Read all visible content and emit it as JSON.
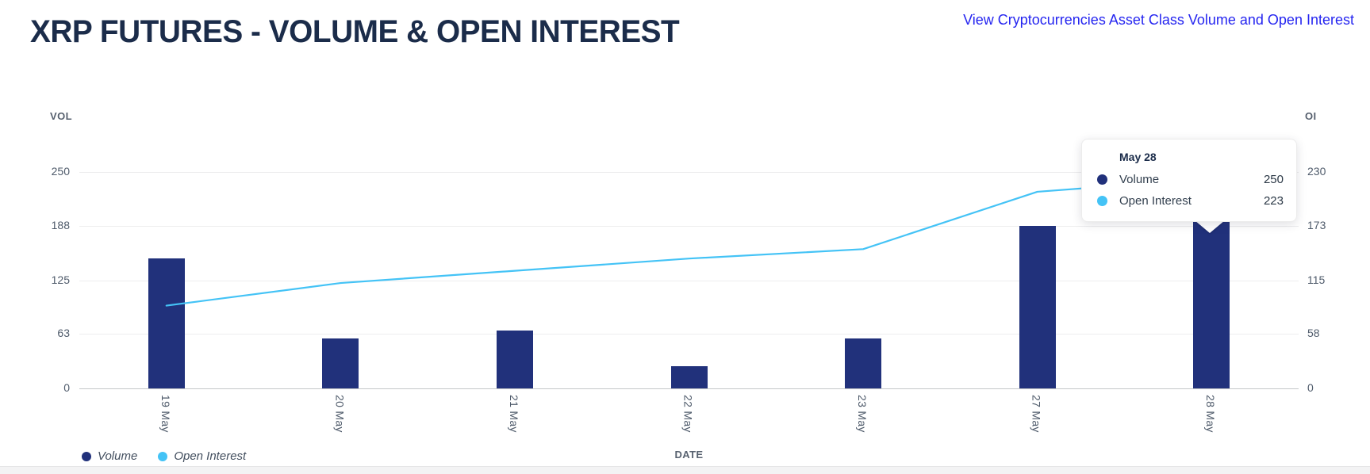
{
  "header": {
    "title": "XRP FUTURES - VOLUME & OPEN INTEREST",
    "link_text": "View Cryptocurrencies Asset Class Volume and Open Interest"
  },
  "axes": {
    "vol_label": "VOL",
    "oi_label": "OI",
    "date_label": "DATE"
  },
  "tooltip": {
    "title": "May 28",
    "rows": [
      {
        "label": "Volume",
        "value": "250",
        "color": "#21317b"
      },
      {
        "label": "Open Interest",
        "value": "223",
        "color": "#44c3f6"
      }
    ]
  },
  "colors": {
    "bar_navy": "#21317b",
    "line_blue": "#44c3f6",
    "title_navy": "#1b2c4a",
    "link_blue": "#2525f0",
    "tick_gray": "#4f5b6b",
    "gridline": "#ededee"
  },
  "chart_data": {
    "type": "bar",
    "title": "XRP FUTURES - VOLUME & OPEN INTEREST",
    "xlabel": "DATE",
    "categories": [
      "19 May",
      "20 May",
      "21 May",
      "22 May",
      "23 May",
      "27 May",
      "28 May"
    ],
    "series": [
      {
        "name": "Volume",
        "type": "bar",
        "axis": "left",
        "color": "#21317b",
        "values": [
          150,
          58,
          67,
          26,
          58,
          188,
          250
        ]
      },
      {
        "name": "Open Interest",
        "type": "line",
        "axis": "right",
        "color": "#44c3f6",
        "values": [
          88,
          112,
          125,
          138,
          148,
          209,
          223
        ]
      }
    ],
    "left_axis": {
      "label": "VOL",
      "max": 250,
      "ticks": [
        250,
        188,
        125,
        63,
        0
      ]
    },
    "right_axis": {
      "label": "OI",
      "max": 230,
      "ticks": [
        230,
        173,
        115,
        58,
        0
      ]
    },
    "grid": "horizontal",
    "legend_position": "bottom-left",
    "tooltip_point": {
      "category": "May 28",
      "Volume": 250,
      "Open Interest": 223
    }
  }
}
